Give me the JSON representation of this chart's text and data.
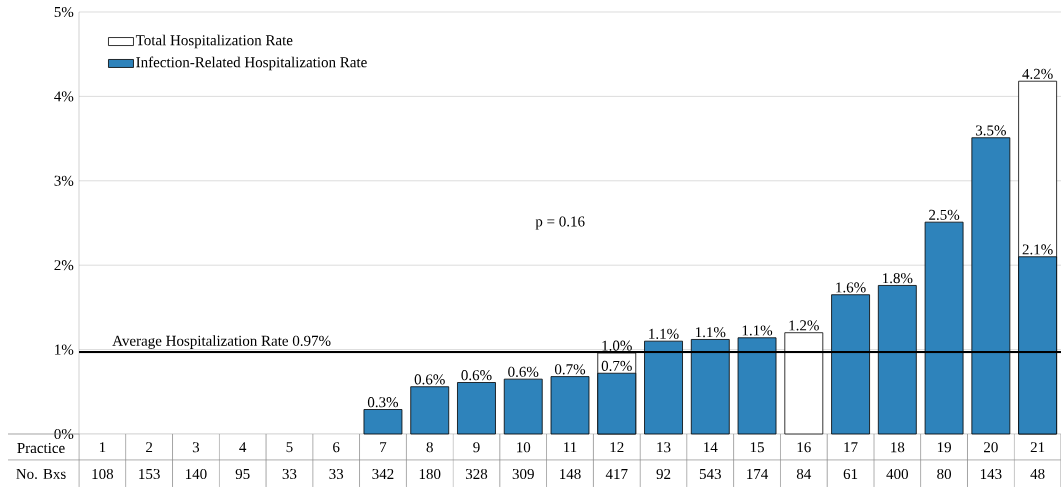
{
  "chart_data": {
    "type": "bar",
    "xlabel": "Practice",
    "categories": [
      "1",
      "2",
      "3",
      "4",
      "5",
      "6",
      "7",
      "8",
      "9",
      "10",
      "11",
      "12",
      "13",
      "14",
      "15",
      "16",
      "17",
      "18",
      "19",
      "20",
      "21"
    ],
    "series": [
      {
        "name": "Total Hospitalization Rate",
        "color": "#ffffff",
        "values": [
          null,
          null,
          null,
          null,
          null,
          null,
          null,
          null,
          null,
          null,
          null,
          0.96,
          null,
          null,
          null,
          1.2,
          null,
          null,
          null,
          null,
          4.18
        ],
        "value_labels": [
          null,
          null,
          null,
          null,
          null,
          null,
          null,
          null,
          null,
          null,
          null,
          "1.0%",
          null,
          null,
          null,
          "1.2%",
          null,
          null,
          null,
          null,
          "4.2%"
        ]
      },
      {
        "name": "Infection-Related Hospitalization Rate",
        "color": "#2e83bb",
        "values": [
          null,
          null,
          null,
          null,
          null,
          null,
          0.29,
          0.56,
          0.61,
          0.65,
          0.68,
          0.72,
          1.1,
          1.12,
          1.14,
          null,
          1.65,
          1.76,
          2.51,
          3.51,
          2.1
        ],
        "value_labels": [
          null,
          null,
          null,
          null,
          null,
          null,
          "0.3%",
          "0.6%",
          "0.6%",
          "0.6%",
          "0.7%",
          "0.7%",
          "1.1%",
          "1.1%",
          "1.1%",
          null,
          "1.6%",
          "1.8%",
          "2.5%",
          "3.5%",
          "2.1%"
        ]
      }
    ],
    "ylim": [
      0,
      5
    ],
    "yticks": [
      {
        "value": 0,
        "label": "0%"
      },
      {
        "value": 1,
        "label": "1%"
      },
      {
        "value": 2,
        "label": "2%"
      },
      {
        "value": 3,
        "label": "3%"
      },
      {
        "value": 4,
        "label": "4%"
      },
      {
        "value": 5,
        "label": "5%"
      }
    ],
    "grid": "y",
    "legend": "top left",
    "ref_lines": [
      {
        "axis": "y",
        "value": 0.97,
        "label": "Average Hospitalization Rate 0.97%",
        "color": "#000000"
      }
    ],
    "annotations": [
      "p = 0.16",
      "No. Bxs",
      "108",
      "153",
      "140",
      "95",
      "33",
      "33",
      "342",
      "180",
      "328",
      "309",
      "148",
      "417",
      "92",
      "543",
      "174",
      "84",
      "61",
      "400",
      "80",
      "143",
      "48"
    ]
  }
}
